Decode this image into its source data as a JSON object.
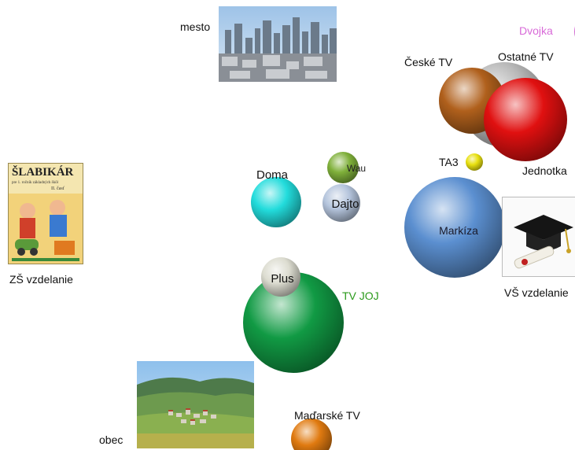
{
  "labels": {
    "mesto": "mesto",
    "obec": "obec",
    "zs_vzdelanie": "ZŠ vzdelanie",
    "vs_vzdelanie": "VŠ vzdelanie"
  },
  "book": {
    "title": "ŠLABIKÁR",
    "subtitle": "pre 1. ročník základných škôl",
    "part": "II. časť"
  },
  "bubbles": [
    {
      "name": "Dvojka",
      "color": "#e573e5",
      "label_color": "#d86ad8"
    },
    {
      "name": "České TV",
      "color": "#b0601c",
      "label_color": "#111111"
    },
    {
      "name": "Ostatné TV",
      "color": "#b8b8b8",
      "label_color": "#111111"
    },
    {
      "name": "Jednotka",
      "color": "#e01010",
      "label_color": "#111111"
    },
    {
      "name": "TA3",
      "color": "#e8e010",
      "label_color": "#111111"
    },
    {
      "name": "Wau",
      "color": "#7fb03a",
      "label_color": "#222222"
    },
    {
      "name": "Doma",
      "color": "#22dcdc",
      "label_color": "#111111"
    },
    {
      "name": "Dajto",
      "color": "#b4c4dc",
      "label_color": "#111111"
    },
    {
      "name": "Markíza",
      "color": "#5b8fd0",
      "label_color": "#1a1a2a"
    },
    {
      "name": "Plus",
      "color": "#dcdcd0",
      "label_color": "#111111"
    },
    {
      "name": "TV JOJ",
      "color": "#119a44",
      "label_color": "#2a9a1a"
    },
    {
      "name": "Maďarské TV",
      "color": "#e07a10",
      "label_color": "#111111"
    }
  ]
}
